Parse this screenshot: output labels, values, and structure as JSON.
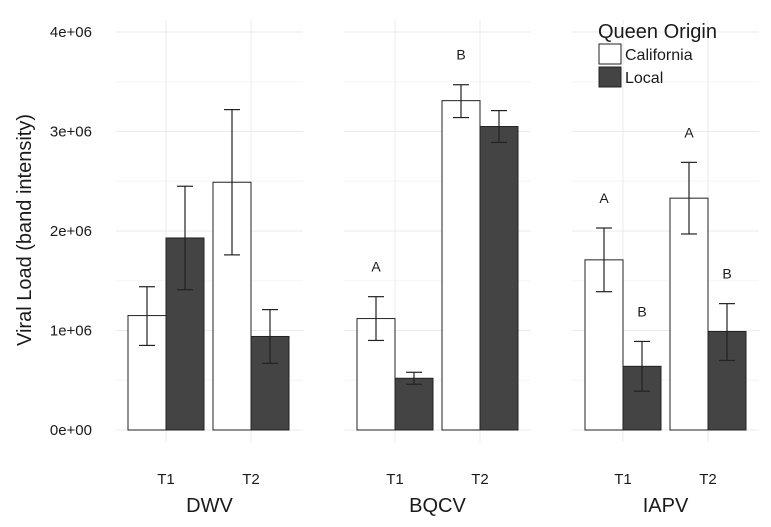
{
  "chart_data": {
    "type": "bar",
    "ylabel": "Viral Load (band intensity)",
    "ylim": [
      0,
      4000000
    ],
    "yticks": [
      {
        "value": 0,
        "label": "0e+00"
      },
      {
        "value": 1000000,
        "label": "1e+06"
      },
      {
        "value": 2000000,
        "label": "2e+06"
      },
      {
        "value": 3000000,
        "label": "3e+06"
      },
      {
        "value": 4000000,
        "label": "4e+06"
      }
    ],
    "grid": true,
    "legend": {
      "title": "Queen Origin",
      "placement": "top-right",
      "entries": [
        {
          "name": "California",
          "color": "#ffffff"
        },
        {
          "name": "Local",
          "color": "#444444"
        }
      ]
    },
    "categories": [
      "T1",
      "T2"
    ],
    "series_order": [
      "California",
      "Local"
    ],
    "panels": [
      {
        "name": "DWV",
        "series": [
          {
            "name": "California",
            "values": [
              1150000,
              2490000
            ],
            "err_low": [
              850000,
              1760000
            ],
            "err_high": [
              1440000,
              3220000
            ],
            "letters": [
              "",
              ""
            ]
          },
          {
            "name": "Local",
            "values": [
              1930000,
              940000
            ],
            "err_low": [
              1410000,
              670000
            ],
            "err_high": [
              2450000,
              1210000
            ],
            "letters": [
              "",
              ""
            ]
          }
        ]
      },
      {
        "name": "BQCV",
        "series": [
          {
            "name": "California",
            "values": [
              1120000,
              3310000
            ],
            "err_low": [
              900000,
              3140000
            ],
            "err_high": [
              1340000,
              3470000
            ],
            "letters": [
              "A",
              "B"
            ]
          },
          {
            "name": "Local",
            "values": [
              520000,
              3050000
            ],
            "err_low": [
              460000,
              2890000
            ],
            "err_high": [
              580000,
              3210000
            ],
            "letters": [
              "",
              ""
            ]
          }
        ]
      },
      {
        "name": "IAPV",
        "series": [
          {
            "name": "California",
            "values": [
              1710000,
              2330000
            ],
            "err_low": [
              1390000,
              1970000
            ],
            "err_high": [
              2030000,
              2690000
            ],
            "letters": [
              "A",
              "A"
            ]
          },
          {
            "name": "Local",
            "values": [
              640000,
              990000
            ],
            "err_low": [
              390000,
              700000
            ],
            "err_high": [
              890000,
              1270000
            ],
            "letters": [
              "B",
              "B"
            ]
          }
        ]
      }
    ]
  }
}
